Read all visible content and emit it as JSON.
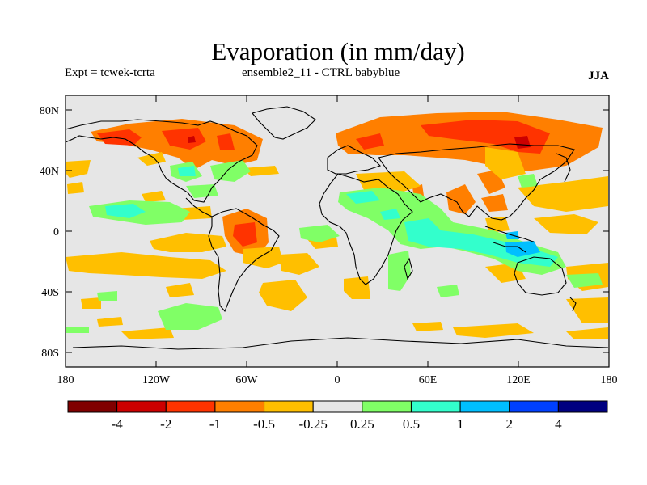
{
  "header": {
    "title": "Evaporation (in mm/day)",
    "expt_label": "Expt = tcwek-tcrta",
    "ensemble_label": "ensemble2_11 - CTRL babyblue",
    "season": "JJA"
  },
  "map": {
    "background_color": "#e6e6e6",
    "lat_ticks": [
      "80N",
      "40N",
      "0",
      "40S",
      "80S"
    ],
    "lon_ticks": [
      "180",
      "120W",
      "60W",
      "0",
      "60E",
      "120E",
      "180"
    ]
  },
  "colorbar": {
    "colors": [
      "#800000",
      "#cc0000",
      "#ff3300",
      "#ff7f00",
      "#ffbf00",
      "#e6e6e6",
      "#80ff66",
      "#33ffcc",
      "#00bfff",
      "#0040ff",
      "#000080"
    ],
    "labels": [
      "-4",
      "-2",
      "-1",
      "-0.5",
      "-0.25",
      "0.25",
      "0.5",
      "1",
      "2",
      "4"
    ]
  }
}
